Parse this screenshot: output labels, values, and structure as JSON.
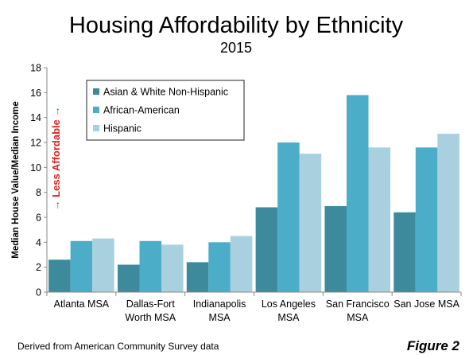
{
  "chart_data": {
    "type": "bar",
    "title": "Housing Affordability by Ethnicity",
    "subtitle": "2015",
    "ylabel": "Median House Value/Median Income",
    "annotation": "→ Less Affordable →",
    "ylim": [
      0,
      18
    ],
    "yticks": [
      "0",
      "2",
      "4",
      "6",
      "8",
      "10",
      "12",
      "14",
      "16",
      "18"
    ],
    "categories": [
      [
        "Atlanta MSA"
      ],
      [
        "Dallas-Fort",
        "Worth MSA"
      ],
      [
        "Indianapolis",
        "MSA"
      ],
      [
        "Los Angeles",
        "MSA"
      ],
      [
        "San Francisco",
        "MSA"
      ],
      [
        "San Jose MSA"
      ]
    ],
    "series": [
      {
        "name": "Asian & White Non-Hispanic",
        "color": "#3c8a9b",
        "values": [
          2.6,
          2.2,
          2.4,
          6.8,
          6.9,
          6.4
        ]
      },
      {
        "name": "African-American",
        "color": "#4badc8",
        "values": [
          4.1,
          4.1,
          4.0,
          12.0,
          15.8,
          11.6
        ]
      },
      {
        "name": "Hispanic",
        "color": "#a8d0de",
        "values": [
          4.3,
          3.8,
          4.5,
          11.1,
          11.6,
          12.7
        ]
      }
    ],
    "legend_position": "top-left",
    "grid": false
  },
  "footer": {
    "source": "Derived from American Community Survey data",
    "figure_label": "Figure 2"
  }
}
